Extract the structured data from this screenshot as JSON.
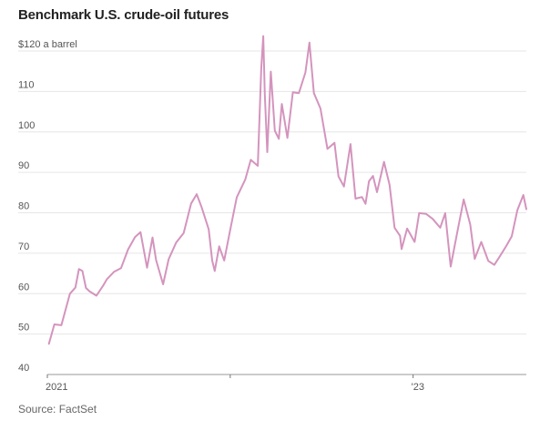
{
  "title": "Benchmark U.S. crude-oil futures",
  "source": "Source: FactSet",
  "colors": {
    "line": "#d494bd",
    "grid": "#e6e6e6",
    "text": "#555555"
  },
  "chart_data": {
    "type": "line",
    "title": "Benchmark U.S. crude-oil futures",
    "ylabel": "$ a barrel",
    "ylim": [
      40,
      120
    ],
    "y_ticks": [
      {
        "value": 120,
        "label": "$120 a barrel"
      },
      {
        "value": 110,
        "label": "110"
      },
      {
        "value": 100,
        "label": "100"
      },
      {
        "value": 90,
        "label": "90"
      },
      {
        "value": 80,
        "label": "80"
      },
      {
        "value": 70,
        "label": "70"
      },
      {
        "value": 60,
        "label": "60"
      },
      {
        "value": 50,
        "label": "50"
      },
      {
        "value": 40,
        "label": "40"
      }
    ],
    "xlim": [
      "2021-01-01",
      "2023-08-15"
    ],
    "x_ticks": [
      {
        "date": "2021-01-01",
        "label": "2021"
      },
      {
        "date": "2022-01-01",
        "label": ""
      },
      {
        "date": "2023-01-01",
        "label": "'23"
      }
    ],
    "grid": true,
    "series": [
      {
        "name": "",
        "x": [
          "2021-01-04",
          "2021-01-15",
          "2021-01-29",
          "2021-02-15",
          "2021-02-26",
          "2021-03-05",
          "2021-03-12",
          "2021-03-19",
          "2021-03-26",
          "2021-04-09",
          "2021-04-23",
          "2021-04-30",
          "2021-05-14",
          "2021-05-28",
          "2021-06-11",
          "2021-06-25",
          "2021-07-06",
          "2021-07-19",
          "2021-07-30",
          "2021-08-06",
          "2021-08-20",
          "2021-08-31",
          "2021-09-15",
          "2021-09-30",
          "2021-10-15",
          "2021-10-26",
          "2021-11-05",
          "2021-11-19",
          "2021-11-26",
          "2021-12-01",
          "2021-12-10",
          "2021-12-20",
          "2021-12-31",
          "2022-01-14",
          "2022-01-31",
          "2022-02-11",
          "2022-02-25",
          "2022-03-04",
          "2022-03-08",
          "2022-03-11",
          "2022-03-16",
          "2022-03-23",
          "2022-03-31",
          "2022-04-08",
          "2022-04-14",
          "2022-04-25",
          "2022-05-06",
          "2022-05-18",
          "2022-05-31",
          "2022-06-08",
          "2022-06-17",
          "2022-06-30",
          "2022-07-14",
          "2022-07-28",
          "2022-08-05",
          "2022-08-16",
          "2022-08-29",
          "2022-09-08",
          "2022-09-21",
          "2022-09-28",
          "2022-10-05",
          "2022-10-13",
          "2022-10-21",
          "2022-11-04",
          "2022-11-15",
          "2022-11-25",
          "2022-12-06",
          "2022-12-09",
          "2022-12-20",
          "2023-01-04",
          "2023-01-13",
          "2023-01-27",
          "2023-02-09",
          "2023-02-24",
          "2023-03-06",
          "2023-03-17",
          "2023-03-31",
          "2023-04-12",
          "2023-04-25",
          "2023-05-04",
          "2023-05-17",
          "2023-05-31",
          "2023-06-12",
          "2023-06-23",
          "2023-07-06",
          "2023-07-17",
          "2023-07-28",
          "2023-08-09",
          "2023-08-15"
        ],
        "y": [
          47.6,
          52.4,
          52.2,
          60.0,
          61.5,
          66.1,
          65.6,
          61.4,
          60.6,
          59.5,
          62.1,
          63.6,
          65.4,
          66.3,
          70.9,
          74.0,
          75.2,
          66.4,
          73.9,
          68.3,
          62.3,
          68.5,
          72.6,
          75.0,
          82.3,
          84.6,
          81.3,
          75.9,
          68.2,
          65.6,
          71.7,
          68.2,
          75.2,
          83.8,
          88.2,
          93.1,
          91.6,
          115.7,
          123.7,
          109.3,
          95.0,
          114.9,
          100.3,
          98.3,
          106.9,
          98.5,
          109.8,
          109.6,
          114.7,
          122.1,
          109.6,
          105.8,
          95.8,
          97.3,
          89.0,
          86.5,
          97.0,
          83.5,
          83.9,
          82.2,
          87.8,
          89.1,
          85.1,
          92.6,
          86.9,
          76.3,
          74.3,
          71.0,
          76.1,
          72.8,
          79.9,
          79.7,
          78.5,
          76.3,
          79.9,
          66.7,
          75.7,
          83.3,
          77.1,
          68.6,
          72.8,
          68.1,
          67.1,
          69.2,
          71.8,
          74.2,
          80.6,
          84.4,
          80.9
        ]
      }
    ]
  }
}
